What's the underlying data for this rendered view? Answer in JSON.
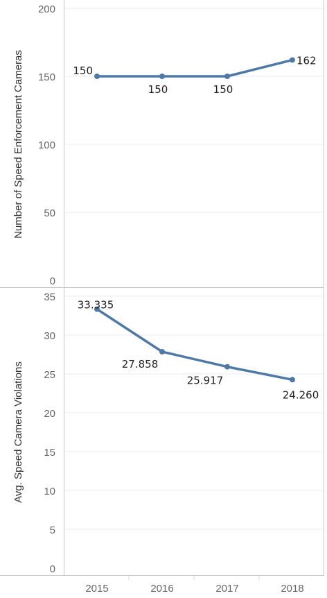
{
  "chart_data": [
    {
      "type": "line",
      "categories": [
        "2015",
        "2016",
        "2017",
        "2018"
      ],
      "values": [
        150,
        150,
        150,
        162
      ],
      "data_labels": [
        "150",
        "150",
        "150",
        "162"
      ],
      "ylabel": "Number of Speed Enforcement Cameras",
      "ylim": [
        0,
        200
      ],
      "yticks": [
        0,
        50,
        100,
        150,
        200
      ],
      "grid": true,
      "color": "#4e79a7"
    },
    {
      "type": "line",
      "categories": [
        "2015",
        "2016",
        "2017",
        "2018"
      ],
      "values": [
        33.335,
        27.858,
        25.917,
        24.26
      ],
      "data_labels": [
        "33.335",
        "27.858",
        "25.917",
        "24.260"
      ],
      "xlabel": "",
      "ylabel": "Avg. Speed Camera Violations",
      "ylim": [
        0,
        35
      ],
      "yticks": [
        0,
        5,
        10,
        15,
        20,
        25,
        30,
        35
      ],
      "grid": true,
      "color": "#4e79a7"
    }
  ]
}
